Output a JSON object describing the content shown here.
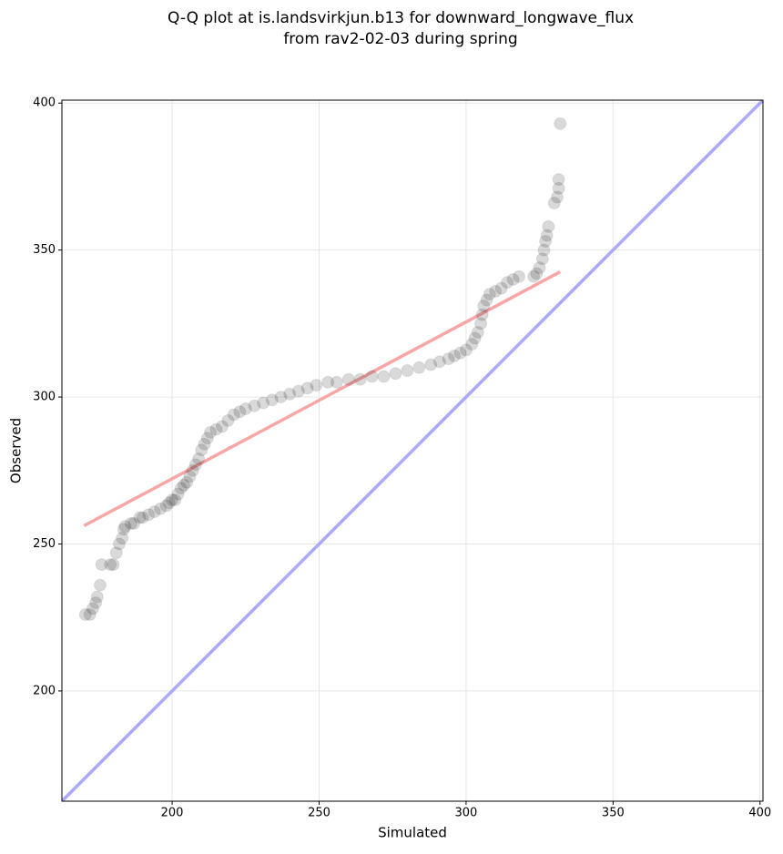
{
  "chart_data": {
    "type": "scatter",
    "title": [
      "Q-Q plot at is.landsvirkjun.b13 for downward_longwave_flux",
      "from rav2-02-03 during spring"
    ],
    "x_label": "Simulated",
    "y_label": "Observed",
    "xlim": [
      162.5,
      401
    ],
    "ylim": [
      162.5,
      401
    ],
    "xticks": [
      200,
      250,
      300,
      350,
      400
    ],
    "yticks": [
      200,
      250,
      300,
      350,
      400
    ],
    "grid": true,
    "x": [
      170.5,
      172,
      173,
      174,
      174.5,
      175.5,
      176,
      179,
      180,
      181,
      182,
      183,
      183.5,
      184,
      186,
      187,
      189,
      190,
      192,
      194,
      196,
      198,
      199,
      200,
      201,
      202,
      203,
      204,
      205,
      206,
      207,
      208,
      209,
      210,
      211,
      212,
      213,
      215,
      217,
      219,
      221,
      223,
      225,
      228,
      231,
      234,
      237,
      240,
      243,
      246,
      249,
      253,
      256,
      260,
      264,
      268,
      272,
      276,
      280,
      284,
      288,
      291,
      294,
      296,
      298,
      300,
      302,
      303,
      304,
      305,
      305.5,
      306,
      307,
      308,
      310,
      312,
      314,
      316,
      318,
      323,
      324,
      325,
      326,
      326.5,
      327,
      327.5,
      328,
      330,
      331,
      331.5,
      331.5,
      332
    ],
    "series": [
      {
        "color": "#000000",
        "values": [
          226,
          226,
          228,
          230,
          232,
          236,
          243,
          243,
          243,
          247,
          250,
          252,
          255,
          256,
          257,
          257,
          259,
          259,
          260,
          261,
          262,
          263,
          264,
          265,
          265,
          267,
          269,
          270,
          271,
          273,
          275,
          277,
          279,
          282,
          284,
          286,
          288,
          289,
          290,
          292,
          294,
          295,
          296,
          297,
          298,
          299,
          300,
          301,
          302,
          303,
          304,
          305,
          305,
          306,
          306,
          307,
          307,
          308,
          309,
          310,
          311,
          312,
          313,
          314,
          315,
          316,
          318,
          320,
          322,
          325,
          328,
          331,
          333,
          335,
          336,
          337,
          339,
          340,
          341,
          341,
          342,
          344,
          347,
          350,
          353,
          355,
          358,
          366,
          368,
          371,
          374,
          393
        ]
      }
    ],
    "fit_line": {
      "color": "#f7a6a6",
      "x": [
        170,
        332
      ],
      "y": [
        256.2,
        342.6
      ]
    },
    "reference_line": {
      "color": "#aaaaf8",
      "x": [
        162.5,
        401
      ],
      "y": [
        162.5,
        401
      ]
    }
  }
}
